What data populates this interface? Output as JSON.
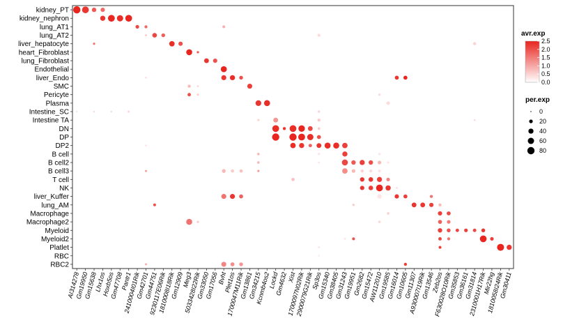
{
  "chart_data": {
    "type": "dot",
    "title": "",
    "xlabel": "",
    "ylabel": "",
    "grid": false,
    "legend_position": "right",
    "color_legend": {
      "title": "avr.exp",
      "range": [
        0,
        2.5
      ],
      "ticks": [
        2.5,
        2.0,
        1.5,
        1.0,
        0.5,
        0.0
      ],
      "low_color": "#ffffff",
      "high_color": "#e8251f"
    },
    "size_legend": {
      "title": "per.exp",
      "ticks": [
        0,
        20,
        40,
        60,
        80
      ]
    },
    "rows": [
      "kidney_PT",
      "kidney_nephron",
      "lung_AT1",
      "lung_AT2",
      "liver_hepatocyte",
      "heart_Fibroblast",
      "lung_Fibroblast",
      "Endothelial",
      "liver_Endo",
      "SMC",
      "Pericyte",
      "Plasma",
      "Intestine_SC",
      "Intestine TA",
      "DN",
      "DP",
      "DP2",
      "B cell",
      "B cell2",
      "B cell3",
      "T cell",
      "NK",
      "liver_Kuffer",
      "lung_AM",
      "Macrophage",
      "Macrophage2",
      "Myeloid",
      "Myeloid2",
      "Platlet",
      "RBC",
      "RBC2"
    ],
    "columns": [
      "AI314278",
      "Gm19950",
      "Gm15638",
      "Lhx1os",
      "Hoxb5os",
      "Gm47708",
      "Pantr1",
      "2410004I01Rik",
      "Gm42701",
      "Gm44751",
      "9230117E06Rik",
      "1810008I18Rik",
      "Gm12909",
      "Meg3",
      "5033428I22Rik",
      "Gm33050",
      "Gm17056",
      "Bvht",
      "Plet1os",
      "1700047M11Rik",
      "Gm13861",
      "Gm34215",
      "Kcnmb4os2",
      "Lockd",
      "Gm4632",
      "Xist",
      "1700097N02Rik",
      "2900079G21Rik",
      "Sp3os",
      "Gm15340",
      "Gm38405",
      "Gm31243",
      "Gm19951",
      "Gm2682",
      "Gm15472",
      "AW112010",
      "Gm19585",
      "Gm16014",
      "Gm10605",
      "Gm11307",
      "A930007I19Rik",
      "Gm13546",
      "Zeb2os",
      "F630028O10Rik",
      "Gm35853",
      "Gm36161",
      "Gm31814",
      "2310001H17Rik",
      "Mir22hg",
      "1810058I24Rik",
      "Gm30411"
    ],
    "points": [
      [
        "kidney_PT",
        "AI314278",
        2.5,
        80
      ],
      [
        "kidney_PT",
        "Gm19950",
        2.3,
        70
      ],
      [
        "kidney_PT",
        "Gm15638",
        1.9,
        30
      ],
      [
        "kidney_PT",
        "Lhx1os",
        1.7,
        28
      ],
      [
        "kidney_nephron",
        "Lhx1os",
        2.3,
        40
      ],
      [
        "kidney_nephron",
        "Hoxb5os",
        2.5,
        70
      ],
      [
        "kidney_nephron",
        "Gm47708",
        2.4,
        60
      ],
      [
        "kidney_nephron",
        "Pantr1",
        2.5,
        70
      ],
      [
        "lung_AT1",
        "2410004I01Rik",
        2.1,
        20
      ],
      [
        "lung_AT1",
        "Gm42701",
        1.7,
        14
      ],
      [
        "lung_AT1",
        "Bvht",
        0.9,
        12
      ],
      [
        "lung_AT2",
        "Gm42701",
        0.6,
        6
      ],
      [
        "lung_AT2",
        "Gm44751",
        2.1,
        32
      ],
      [
        "lung_AT2",
        "9230117E06Rik",
        1.8,
        22
      ],
      [
        "lung_AT2",
        "Sp3os",
        0.4,
        14
      ],
      [
        "liver_hepatocyte",
        "Gm15638",
        1.6,
        8
      ],
      [
        "liver_hepatocyte",
        "1810008I18Rik",
        2.4,
        45
      ],
      [
        "liver_hepatocyte",
        "Gm12909",
        2.0,
        28
      ],
      [
        "liver_hepatocyte",
        "Gm31814",
        0.5,
        14
      ],
      [
        "heart_Fibroblast",
        "Meg3",
        2.5,
        55
      ],
      [
        "heart_Fibroblast",
        "5033428I22Rik",
        1.9,
        8
      ],
      [
        "lung_Fibroblast",
        "Gm33050",
        2.3,
        35
      ],
      [
        "lung_Fibroblast",
        "Gm17056",
        2.0,
        28
      ],
      [
        "Endothelial",
        "Bvht",
        2.5,
        55
      ],
      [
        "liver_Endo",
        "Gm42701",
        0.4,
        5
      ],
      [
        "liver_Endo",
        "Bvht",
        2.3,
        38
      ],
      [
        "liver_Endo",
        "Plet1os",
        2.4,
        40
      ],
      [
        "liver_Endo",
        "1700047M11Rik",
        2.0,
        22
      ],
      [
        "liver_Endo",
        "Gm16014",
        2.3,
        24
      ],
      [
        "liver_Endo",
        "Gm10605",
        2.5,
        24
      ],
      [
        "SMC",
        "Meg3",
        0.8,
        14
      ],
      [
        "SMC",
        "5033428I22Rik",
        0.5,
        5
      ],
      [
        "SMC",
        "Gm13861",
        2.2,
        38
      ],
      [
        "Pericyte",
        "Meg3",
        2.0,
        18
      ],
      [
        "Pericyte",
        "5033428I22Rik",
        0.5,
        8
      ],
      [
        "Pericyte",
        "AW112010",
        0.4,
        8
      ],
      [
        "Plasma",
        "Gm34215",
        2.3,
        50
      ],
      [
        "Plasma",
        "Kcnmb4os2",
        2.4,
        55
      ],
      [
        "Plasma",
        "Gm19585",
        0.4,
        18
      ],
      [
        "Intestine_SC",
        "AI314278",
        0.3,
        5
      ],
      [
        "Intestine_SC",
        "Gm15638",
        0.4,
        5
      ],
      [
        "Intestine_SC",
        "Hoxb5os",
        0.4,
        5
      ],
      [
        "Intestine_SC",
        "Pantr1",
        0.5,
        6
      ],
      [
        "Intestine_SC",
        "Sp3os",
        0.4,
        10
      ],
      [
        "Intestine TA",
        "Gm34215",
        0.5,
        8
      ],
      [
        "Intestine TA",
        "Lockd",
        1.2,
        35
      ],
      [
        "Intestine TA",
        "Sp3os",
        0.6,
        14
      ],
      [
        "Intestine TA",
        "Gm31814",
        0.4,
        6
      ],
      [
        "DN",
        "Lockd",
        2.4,
        70
      ],
      [
        "DN",
        "Gm4632",
        2.3,
        14
      ],
      [
        "DN",
        "Xist",
        2.4,
        70
      ],
      [
        "DN",
        "1700097N02Rik",
        2.5,
        65
      ],
      [
        "DN",
        "2900079G21Rik",
        2.1,
        35
      ],
      [
        "DN",
        "Sp3os",
        0.6,
        10
      ],
      [
        "DP",
        "Lockd",
        2.5,
        80
      ],
      [
        "DP",
        "Xist",
        2.5,
        80
      ],
      [
        "DP",
        "1700097N02Rik",
        2.5,
        72
      ],
      [
        "DP",
        "2900079G21Rik",
        2.4,
        60
      ],
      [
        "DP",
        "Sp3os",
        2.0,
        25
      ],
      [
        "DP2",
        "Gm42701",
        0.4,
        4
      ],
      [
        "DP2",
        "Xist",
        2.4,
        45
      ],
      [
        "DP2",
        "1700097N02Rik",
        2.3,
        40
      ],
      [
        "DP2",
        "2900079G21Rik",
        1.8,
        18
      ],
      [
        "DP2",
        "Sp3os",
        2.3,
        35
      ],
      [
        "DP2",
        "Gm15340",
        2.4,
        55
      ],
      [
        "DP2",
        "Gm38405",
        2.4,
        55
      ],
      [
        "DP2",
        "Gm31243",
        2.2,
        45
      ],
      [
        "B cell",
        "Gm34215",
        0.8,
        10
      ],
      [
        "B cell",
        "Sp3os",
        0.3,
        8
      ],
      [
        "B cell",
        "Gm31243",
        2.2,
        40
      ],
      [
        "B cell",
        "AW112010",
        0.3,
        8
      ],
      [
        "B cell2",
        "Gm34215",
        0.8,
        10
      ],
      [
        "B cell2",
        "Sp3os",
        0.3,
        6
      ],
      [
        "B cell2",
        "Gm31243",
        2.1,
        55
      ],
      [
        "B cell2",
        "Gm19951",
        1.9,
        30
      ],
      [
        "B cell2",
        "Gm2682",
        2.2,
        40
      ],
      [
        "B cell2",
        "Gm15472",
        2.0,
        30
      ],
      [
        "B cell2",
        "AW112010",
        0.8,
        20
      ],
      [
        "B cell2",
        "Gm19585",
        0.3,
        8
      ],
      [
        "B cell3",
        "Gm42701",
        1.2,
        6
      ],
      [
        "B cell3",
        "Bvht",
        0.8,
        22
      ],
      [
        "B cell3",
        "Plet1os",
        0.6,
        16
      ],
      [
        "B cell3",
        "1700047M11Rik",
        0.7,
        16
      ],
      [
        "B cell3",
        "Gm34215",
        1.1,
        8
      ],
      [
        "B cell3",
        "Gm31243",
        1.3,
        45
      ],
      [
        "B cell3",
        "Gm19951",
        0.8,
        20
      ],
      [
        "B cell3",
        "Gm2682",
        0.5,
        16
      ],
      [
        "B cell3",
        "Gm15472",
        0.4,
        14
      ],
      [
        "B cell3",
        "AW112010",
        0.3,
        14
      ],
      [
        "T cell",
        "Xist",
        0.7,
        16
      ],
      [
        "T cell",
        "Gm2682",
        2.3,
        30
      ],
      [
        "T cell",
        "Gm15472",
        2.3,
        32
      ],
      [
        "T cell",
        "AW112010",
        2.2,
        40
      ],
      [
        "T cell",
        "Gm19585",
        1.4,
        20
      ],
      [
        "NK",
        "Gm2682",
        2.3,
        28
      ],
      [
        "NK",
        "Gm15472",
        2.2,
        32
      ],
      [
        "NK",
        "AW112010",
        2.5,
        70
      ],
      [
        "NK",
        "Gm19585",
        2.3,
        42
      ],
      [
        "NK",
        "Gm16014",
        0.3,
        8
      ],
      [
        "liver_Kuffer",
        "Bvht",
        1.6,
        38
      ],
      [
        "liver_Kuffer",
        "Plet1os",
        2.3,
        38
      ],
      [
        "liver_Kuffer",
        "1700047M11Rik",
        1.8,
        24
      ],
      [
        "liver_Kuffer",
        "AW112010",
        0.3,
        30
      ],
      [
        "liver_Kuffer",
        "Gm16014",
        2.3,
        28
      ],
      [
        "liver_Kuffer",
        "Gm10605",
        2.2,
        24
      ],
      [
        "liver_Kuffer",
        "Gm13546",
        1.6,
        14
      ],
      [
        "lung_AM",
        "Gm44751",
        2.0,
        12
      ],
      [
        "lung_AM",
        "Gm19951",
        0.6,
        8
      ],
      [
        "lung_AM",
        "Gm11307",
        2.3,
        35
      ],
      [
        "lung_AM",
        "A930007I19Rik",
        2.3,
        35
      ],
      [
        "lung_AM",
        "Gm13546",
        2.2,
        28
      ],
      [
        "lung_AM",
        "Zeb2os",
        0.8,
        14
      ],
      [
        "Macrophage",
        "Gm19585",
        0.5,
        10
      ],
      [
        "Macrophage",
        "Zeb2os",
        2.2,
        28
      ],
      [
        "Macrophage",
        "F630028O10Rik",
        2.1,
        24
      ],
      [
        "Macrophage2",
        "Meg3",
        1.6,
        55
      ],
      [
        "Macrophage2",
        "5033428I22Rik",
        0.6,
        8
      ],
      [
        "Macrophage2",
        "AW112010",
        0.4,
        10
      ],
      [
        "Macrophage2",
        "Zeb2os",
        1.8,
        24
      ],
      [
        "Macrophage2",
        "F630028O10Rik",
        1.5,
        20
      ],
      [
        "Myeloid",
        "Zeb2os",
        2.2,
        30
      ],
      [
        "Myeloid",
        "F630028O10Rik",
        2.0,
        22
      ],
      [
        "Myeloid",
        "Gm35853",
        2.1,
        18
      ],
      [
        "Myeloid",
        "Gm36161",
        2.2,
        20
      ],
      [
        "Myeloid",
        "Gm31814",
        2.1,
        18
      ],
      [
        "Myeloid",
        "2310001H17Rik",
        2.3,
        22
      ],
      [
        "Myeloid2",
        "Gm31243",
        0.3,
        6
      ],
      [
        "Myeloid2",
        "Gm19951",
        2.0,
        12
      ],
      [
        "Myeloid2",
        "Zeb2os",
        2.1,
        18
      ],
      [
        "Myeloid2",
        "F630028O10Rik",
        1.6,
        14
      ],
      [
        "Myeloid2",
        "2310001H17Rik",
        2.5,
        70
      ],
      [
        "Myeloid2",
        "Mir22hg",
        2.2,
        20
      ],
      [
        "Platlet",
        "Zeb2os",
        2.2,
        12
      ],
      [
        "Platlet",
        "Sp3os",
        0.3,
        6
      ],
      [
        "Platlet",
        "1810058I24Rik",
        2.5,
        75
      ],
      [
        "Platlet",
        "Gm30411",
        2.3,
        40
      ],
      [
        "RBC",
        "Sp3os",
        0.3,
        4
      ],
      [
        "RBC2",
        "Gm42701",
        1.0,
        6
      ],
      [
        "RBC2",
        "Bvht",
        1.4,
        38
      ],
      [
        "RBC2",
        "Plet1os",
        1.3,
        24
      ],
      [
        "RBC2",
        "1700047M11Rik",
        1.2,
        22
      ],
      [
        "RBC2",
        "Gm10605",
        2.2,
        14
      ]
    ]
  }
}
